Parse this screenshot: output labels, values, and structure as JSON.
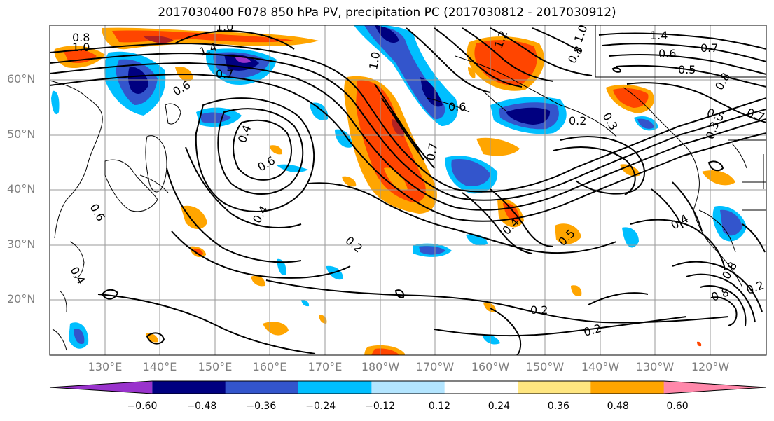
{
  "title": "2017030400 F078 850 hPa PV, precipitation PC (2017030812 - 2017030912)",
  "lat_labels": [
    "60°N",
    "50°N",
    "40°N",
    "30°N",
    "20°N"
  ],
  "lon_labels": [
    "130°E",
    "140°E",
    "150°E",
    "160°E",
    "170°E",
    "180°W",
    "170°W",
    "160°W",
    "150°W",
    "140°W",
    "130°W",
    "120°W"
  ],
  "colorbar": {
    "ticks": [
      "−0.60",
      "−0.48",
      "−0.36",
      "−0.24",
      "−0.12",
      "0.12",
      "0.24",
      "0.36",
      "0.48",
      "0.60"
    ],
    "colors": [
      "#9933cc",
      "#000080",
      "#3355cc",
      "#00bfff",
      "#b3e5ff",
      "#ffffff",
      "#ffe680",
      "#ffa500",
      "#ff4500",
      "#b22222",
      "#ff88aa"
    ]
  },
  "contour_labels": [
    "0.8",
    "1.0",
    "1.0",
    "1.4",
    "0.7",
    "0.6",
    "0.6",
    "1.2",
    "1.0",
    "0.8",
    "1.4",
    "0.6",
    "0.7",
    "0.5",
    "0.8",
    "0.2",
    "0.3",
    "0.5",
    "0.7",
    "0.3",
    "0.4",
    "0.6",
    "0.4",
    "0.2",
    "0.4",
    "0.5",
    "0.4",
    "0.2",
    "0.2",
    "0.7",
    "0.8",
    "0.2",
    "0.4",
    "0.6",
    "0.8",
    "1.0"
  ]
}
